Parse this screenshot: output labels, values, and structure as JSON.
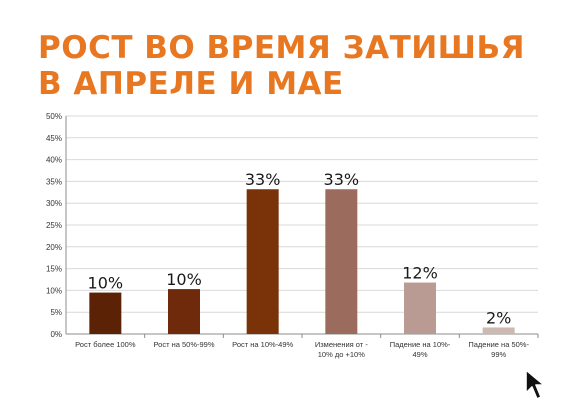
{
  "slide": {
    "title": "РОСТ ВО ВРЕМЯ ЗАТИШЬЯ В АПРЕЛЕ И МАЕ"
  },
  "colors": {
    "title": "#e87722",
    "bars": [
      "#5c2206",
      "#6f2a0b",
      "#7a3208",
      "#9b6b5e",
      "#b99b93",
      "#cdb8b2"
    ]
  },
  "chart_data": {
    "type": "bar",
    "title": "",
    "xlabel": "",
    "ylabel": "",
    "ylim": [
      0,
      50
    ],
    "ytick_step": 5,
    "ytick_suffix": "%",
    "grid": true,
    "legend": "none",
    "categories": [
      [
        "Рост более 100%"
      ],
      [
        "Рост на 50%-99%"
      ],
      [
        "Рост на 10%-49%"
      ],
      [
        "Изменения от -",
        "10% до +10%"
      ],
      [
        "Падение на 10%-",
        "49%"
      ],
      [
        "Падение на 50%-",
        "99%"
      ]
    ],
    "values": [
      9.5,
      10.3,
      33.2,
      33.2,
      11.8,
      1.5
    ],
    "data_labels": [
      "10%",
      "10%",
      "33%",
      "33%",
      "12%",
      "2%"
    ]
  },
  "cursor": {
    "icon": "mouse-pointer-icon"
  }
}
